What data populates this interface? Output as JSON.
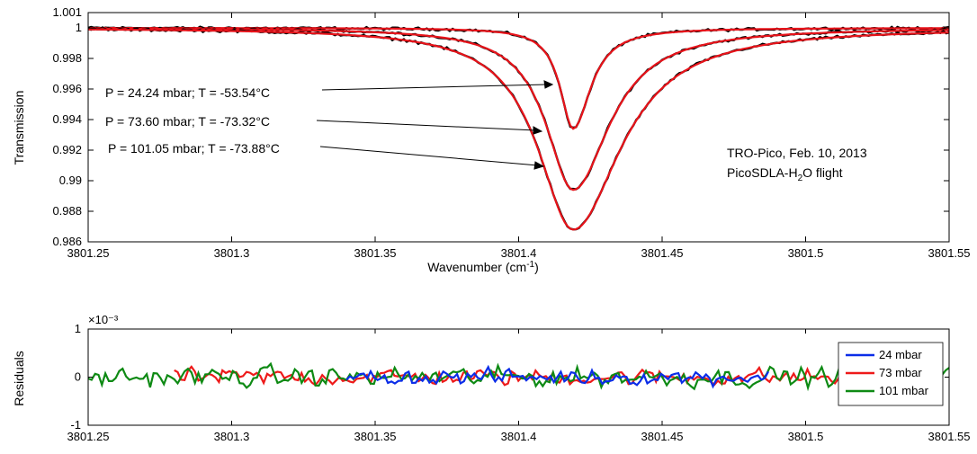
{
  "chart_data": [
    {
      "type": "line",
      "title": "",
      "xlabel": "Wavenumber (cm-1)",
      "ylabel": "Transmission",
      "xlim": [
        3801.25,
        3801.55
      ],
      "ylim": [
        0.986,
        1.001
      ],
      "x_ticks": [
        "3801.25",
        "3801.3",
        "3801.35",
        "3801.4",
        "3801.45",
        "3801.5",
        "3801.55"
      ],
      "y_ticks": [
        "0.986",
        "0.988",
        "0.99",
        "0.992",
        "0.994",
        "0.996",
        "0.998",
        "1",
        "1.001"
      ],
      "grid": false,
      "colors": {
        "measured": "#000000",
        "fit": "#e8131a"
      },
      "line_center": 3801.419,
      "series": [
        {
          "label": "P = 24.24 mbar; T = -53.54°C",
          "x_start": 3801.25,
          "x_end": 3801.55,
          "min_transmission": 0.9934,
          "hwhm": 0.0055
        },
        {
          "label": "P = 73.60 mbar; T = -73.32°C",
          "x_start": 3801.25,
          "x_end": 3801.55,
          "min_transmission": 0.9894,
          "hwhm": 0.0115
        },
        {
          "label": "P = 101.05 mbar; T = -73.88°C",
          "x_start": 3801.25,
          "x_end": 3801.55,
          "min_transmission": 0.9868,
          "hwhm": 0.015
        }
      ],
      "annotation": {
        "line1": "TRO-Pico, Feb. 10, 2013",
        "line2_prefix": "PicoSDLA-H",
        "line2_sub": "2",
        "line2_suffix": "O flight"
      }
    },
    {
      "type": "line",
      "title": "",
      "xlabel": "",
      "ylabel": "Residuals",
      "scale_label": "×10⁻³",
      "xlim": [
        3801.25,
        3801.55
      ],
      "ylim": [
        -1,
        1
      ],
      "x_ticks": [
        "3801.25",
        "3801.3",
        "3801.35",
        "3801.4",
        "3801.45",
        "3801.5",
        "3801.55"
      ],
      "y_ticks": [
        "-1",
        "0",
        "1"
      ],
      "grid": false,
      "legend_position": "right",
      "series": [
        {
          "name": "24 mbar",
          "color": "#0b2de8",
          "x_range": [
            3801.34,
            3801.487
          ],
          "amplitude": 0.22
        },
        {
          "name": "73 mbar",
          "color": "#ee1a1a",
          "x_range": [
            3801.28,
            3801.515
          ],
          "amplitude": 0.24
        },
        {
          "name": "101 mbar",
          "color": "#0e8a14",
          "x_range": [
            3801.25,
            3801.55
          ],
          "amplitude": 0.28
        }
      ]
    }
  ]
}
